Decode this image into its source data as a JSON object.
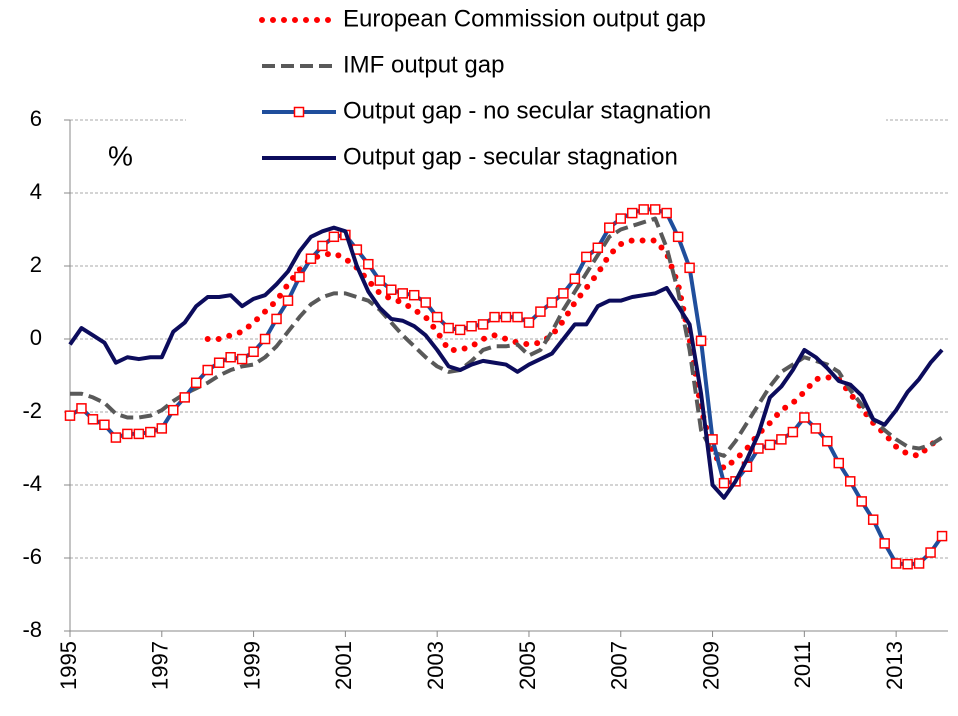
{
  "chart_data": {
    "type": "line",
    "annotation": "%",
    "x": [
      1995,
      1995.25,
      1995.5,
      1995.75,
      1996,
      1996.25,
      1996.5,
      1996.75,
      1997,
      1997.25,
      1997.5,
      1997.75,
      1998,
      1998.25,
      1998.5,
      1998.75,
      1999,
      1999.25,
      1999.5,
      1999.75,
      2000,
      2000.25,
      2000.5,
      2000.75,
      2001,
      2001.25,
      2001.5,
      2001.75,
      2002,
      2002.25,
      2002.5,
      2002.75,
      2003,
      2003.25,
      2003.5,
      2003.75,
      2004,
      2004.25,
      2004.5,
      2004.75,
      2005,
      2005.25,
      2005.5,
      2005.75,
      2006,
      2006.25,
      2006.5,
      2006.75,
      2007,
      2007.25,
      2007.5,
      2007.75,
      2008,
      2008.25,
      2008.5,
      2008.75,
      2009,
      2009.25,
      2009.5,
      2009.75,
      2010,
      2010.25,
      2010.5,
      2010.75,
      2011,
      2011.25,
      2011.5,
      2011.75,
      2012,
      2012.25,
      2012.5,
      2012.75,
      2013,
      2013.25,
      2013.5,
      2013.75,
      2014
    ],
    "xlim": [
      1995,
      2014.13
    ],
    "xticks": [
      1995,
      1997,
      1999,
      2001,
      2003,
      2005,
      2007,
      2009,
      2011,
      2013
    ],
    "ylim": [
      -8,
      6
    ],
    "yticks": [
      -8,
      -6,
      -4,
      -2,
      0,
      2,
      4,
      6
    ],
    "grid": true,
    "series": [
      {
        "name": "European Commission output gap",
        "color": "#ff0000",
        "style": "dot",
        "values": [
          null,
          null,
          null,
          null,
          null,
          null,
          null,
          null,
          null,
          null,
          null,
          null,
          0.0,
          0.0,
          0.1,
          0.2,
          0.45,
          0.75,
          1.05,
          1.5,
          1.9,
          2.2,
          2.3,
          2.35,
          2.2,
          1.95,
          1.6,
          1.25,
          1.1,
          1.0,
          0.8,
          0.6,
          0.2,
          -0.3,
          -0.3,
          -0.2,
          0.0,
          0.1,
          0.0,
          -0.1,
          -0.15,
          -0.1,
          0.1,
          0.5,
          1.0,
          1.4,
          1.8,
          2.3,
          2.6,
          2.7,
          2.7,
          2.7,
          2.35,
          1.5,
          0.0,
          -1.9,
          -3.1,
          -3.55,
          -3.3,
          -3.0,
          -2.6,
          -2.3,
          -1.95,
          -1.75,
          -1.45,
          -1.1,
          -1.05,
          -1.1,
          -1.5,
          -1.9,
          -2.3,
          -2.6,
          -2.95,
          -3.15,
          -3.2,
          -2.9,
          -2.7
        ]
      },
      {
        "name": "IMF output gap",
        "color": "#595959",
        "style": "dash",
        "values": [
          -1.5,
          -1.5,
          -1.6,
          -1.75,
          -2.05,
          -2.15,
          -2.15,
          -2.1,
          -1.95,
          -1.7,
          -1.5,
          -1.35,
          -1.2,
          -1.0,
          -0.85,
          -0.75,
          -0.7,
          -0.5,
          -0.2,
          0.2,
          0.6,
          0.95,
          1.15,
          1.25,
          1.25,
          1.15,
          1.05,
          0.8,
          0.45,
          0.1,
          -0.2,
          -0.5,
          -0.75,
          -0.9,
          -0.85,
          -0.6,
          -0.3,
          -0.2,
          -0.2,
          -0.15,
          -0.45,
          -0.3,
          0.2,
          0.8,
          1.3,
          1.8,
          2.3,
          2.8,
          3.0,
          3.1,
          3.2,
          3.3,
          2.5,
          1.3,
          -0.3,
          -2.5,
          -3.1,
          -3.2,
          -2.8,
          -2.3,
          -1.8,
          -1.3,
          -0.9,
          -0.7,
          -0.5,
          -0.6,
          -0.7,
          -0.9,
          -1.4,
          -1.8,
          -2.2,
          -2.5,
          -2.75,
          -2.95,
          -3.0,
          -2.9,
          -2.7
        ]
      },
      {
        "name": "Output gap - no secular stagnation",
        "color": "#1f4e9c",
        "marker_color": "#ff0000",
        "style": "solid",
        "marker": "square",
        "values": [
          -2.1,
          -1.9,
          -2.2,
          -2.35,
          -2.7,
          -2.6,
          -2.6,
          -2.55,
          -2.45,
          -1.95,
          -1.6,
          -1.2,
          -0.85,
          -0.65,
          -0.5,
          -0.55,
          -0.35,
          0.0,
          0.55,
          1.05,
          1.7,
          2.2,
          2.55,
          2.8,
          2.85,
          2.45,
          2.05,
          1.6,
          1.35,
          1.25,
          1.2,
          1.0,
          0.6,
          0.3,
          0.25,
          0.35,
          0.4,
          0.6,
          0.6,
          0.6,
          0.45,
          0.75,
          1.0,
          1.25,
          1.65,
          2.25,
          2.5,
          3.05,
          3.3,
          3.45,
          3.55,
          3.55,
          3.45,
          2.8,
          1.95,
          -0.05,
          -2.75,
          -3.95,
          -3.9,
          -3.5,
          -3.0,
          -2.9,
          -2.75,
          -2.55,
          -2.15,
          -2.45,
          -2.8,
          -3.4,
          -3.9,
          -4.45,
          -4.95,
          -5.6,
          -6.15,
          -6.17,
          -6.15,
          -5.85,
          -5.4
        ]
      },
      {
        "name": "Output gap - secular stagnation",
        "color": "#0c0c5c",
        "style": "solid",
        "values": [
          -0.15,
          0.3,
          0.1,
          -0.1,
          -0.65,
          -0.5,
          -0.55,
          -0.5,
          -0.5,
          0.2,
          0.45,
          0.9,
          1.15,
          1.15,
          1.2,
          0.9,
          1.1,
          1.2,
          1.5,
          1.85,
          2.4,
          2.8,
          2.95,
          3.05,
          2.95,
          2.0,
          1.3,
          0.85,
          0.55,
          0.5,
          0.35,
          0.1,
          -0.3,
          -0.75,
          -0.85,
          -0.7,
          -0.6,
          -0.65,
          -0.7,
          -0.9,
          -0.7,
          -0.55,
          -0.4,
          0.0,
          0.4,
          0.4,
          0.9,
          1.05,
          1.05,
          1.15,
          1.2,
          1.25,
          1.4,
          0.9,
          0.4,
          -1.5,
          -4.0,
          -4.35,
          -3.9,
          -3.3,
          -2.6,
          -1.6,
          -1.3,
          -0.85,
          -0.3,
          -0.5,
          -0.8,
          -1.15,
          -1.25,
          -1.55,
          -2.2,
          -2.35,
          -1.95,
          -1.45,
          -1.1,
          -0.65,
          -0.3
        ]
      }
    ]
  }
}
